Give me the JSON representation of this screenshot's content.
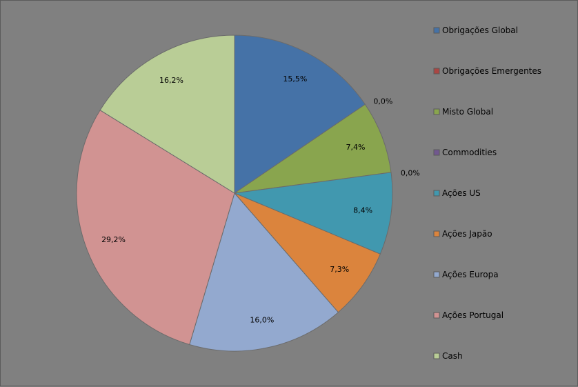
{
  "chart_data": {
    "type": "pie",
    "categories": [
      "Obrigações Global",
      "Obrigações Emergentes",
      "Misto Global",
      "Commodities",
      "Ações US",
      "Ações Japão",
      "Ações Europa",
      "Ações Portugal",
      "Cash"
    ],
    "values": [
      15.5,
      0.0,
      7.4,
      0.0,
      8.4,
      7.3,
      16.0,
      29.2,
      16.2
    ],
    "labels": [
      "15,5%",
      "0,0%",
      "7,4%",
      "0,0%",
      "8,4%",
      "7,3%",
      "16,0%",
      "29,2%",
      "16,2%"
    ],
    "colors": [
      "#4572A7",
      "#AA4643",
      "#89A54E",
      "#71588F",
      "#4198AF",
      "#DB843D",
      "#93A9CF",
      "#D19392",
      "#B9CD96"
    ],
    "title": "",
    "legend_position": "right"
  }
}
